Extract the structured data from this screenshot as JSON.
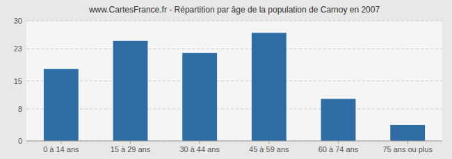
{
  "chart_data": {
    "type": "bar",
    "title": "www.CartesFrance.fr - Répartition par âge de la population de Carnoy en 2007",
    "categories": [
      "0 à 14 ans",
      "15 à 29 ans",
      "30 à 44 ans",
      "45 à 59 ans",
      "60 à 74 ans",
      "75 ans ou plus"
    ],
    "values": [
      18.0,
      25.0,
      22.0,
      27.0,
      10.5,
      4.0
    ],
    "color": "#2e6da4",
    "ylim": [
      0,
      30
    ],
    "yticks": [
      0,
      8,
      15,
      23,
      30
    ],
    "grid": true
  }
}
